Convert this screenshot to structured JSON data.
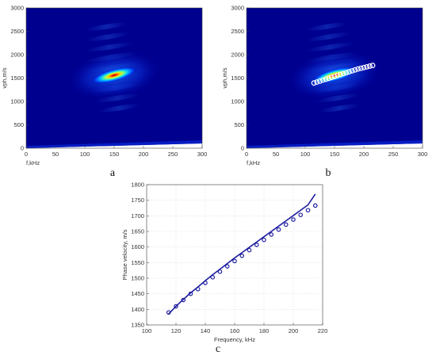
{
  "figure": {
    "panel_labels": [
      "a",
      "b",
      "c"
    ]
  },
  "chart_data": [
    {
      "panel": "a",
      "type": "heatmap",
      "colormap": "jet",
      "xlabel": "f,kHz",
      "ylabel": "vph,m/s",
      "xlim": [
        0,
        300
      ],
      "ylim": [
        0,
        3000
      ],
      "xticks": [
        "0",
        "50",
        "100",
        "150",
        "200",
        "250",
        "300"
      ],
      "yticks": [
        "0",
        "500",
        "1000",
        "1500",
        "2000",
        "2500",
        "3000"
      ],
      "peak": {
        "f": 150,
        "vph": 1560
      },
      "ridge": [
        [
          95,
          1230
        ],
        [
          115,
          1340
        ],
        [
          135,
          1460
        ],
        [
          150,
          1560
        ],
        [
          170,
          1650
        ],
        [
          190,
          1730
        ],
        [
          210,
          1800
        ]
      ],
      "overlay_points": []
    },
    {
      "panel": "b",
      "type": "heatmap",
      "colormap": "jet",
      "xlabel": "f,kHz",
      "ylabel": "vph,m/s",
      "xlim": [
        0,
        300
      ],
      "ylim": [
        0,
        3000
      ],
      "xticks": [
        "0",
        "50",
        "100",
        "150",
        "200",
        "250",
        "300"
      ],
      "yticks": [
        "0",
        "500",
        "1000",
        "1500",
        "2000",
        "2500",
        "3000"
      ],
      "peak": {
        "f": 150,
        "vph": 1560
      },
      "ridge": [
        [
          95,
          1230
        ],
        [
          115,
          1340
        ],
        [
          135,
          1460
        ],
        [
          150,
          1560
        ],
        [
          170,
          1650
        ],
        [
          190,
          1730
        ],
        [
          210,
          1800
        ]
      ],
      "overlay_points": [
        [
          115,
          1395
        ],
        [
          120,
          1415
        ],
        [
          125,
          1435
        ],
        [
          130,
          1455
        ],
        [
          135,
          1475
        ],
        [
          140,
          1495
        ],
        [
          145,
          1515
        ],
        [
          150,
          1535
        ],
        [
          155,
          1555
        ],
        [
          160,
          1575
        ],
        [
          165,
          1595
        ],
        [
          170,
          1615
        ],
        [
          175,
          1635
        ],
        [
          180,
          1655
        ],
        [
          185,
          1675
        ],
        [
          190,
          1695
        ],
        [
          195,
          1710
        ],
        [
          200,
          1725
        ],
        [
          205,
          1740
        ],
        [
          210,
          1755
        ],
        [
          215,
          1770
        ]
      ]
    },
    {
      "panel": "c",
      "type": "line",
      "xlabel": "Frequency, kHz",
      "ylabel": "Phase velocity, m/s",
      "xlim": [
        100,
        220
      ],
      "ylim": [
        1350,
        1800
      ],
      "xticks": [
        100,
        120,
        140,
        160,
        180,
        200,
        220
      ],
      "yticks": [
        1350,
        1400,
        1450,
        1500,
        1550,
        1600,
        1650,
        1700,
        1750,
        1800
      ],
      "grid": true,
      "series": [
        {
          "style": "markers",
          "color": "#1f1fa0",
          "x": [
            115,
            120,
            125,
            130,
            135,
            140,
            145,
            150,
            155,
            160,
            165,
            170,
            175,
            180,
            185,
            190,
            195,
            200,
            205,
            210,
            215
          ],
          "y": [
            1390,
            1410,
            1430,
            1450,
            1465,
            1485,
            1503,
            1521,
            1538,
            1555,
            1572,
            1590,
            1607,
            1623,
            1640,
            1656,
            1672,
            1688,
            1703,
            1718,
            1733
          ]
        },
        {
          "style": "line",
          "color": "#1f1fa0",
          "x": [
            115,
            120,
            125,
            130,
            135,
            140,
            145,
            150,
            155,
            160,
            165,
            170,
            175,
            180,
            185,
            190,
            195,
            200,
            205,
            210,
            215
          ],
          "y": [
            1385,
            1410,
            1432,
            1453,
            1472,
            1492,
            1511,
            1529,
            1547,
            1565,
            1582,
            1599,
            1616,
            1633,
            1650,
            1667,
            1684,
            1701,
            1718,
            1735,
            1770
          ]
        }
      ]
    }
  ]
}
